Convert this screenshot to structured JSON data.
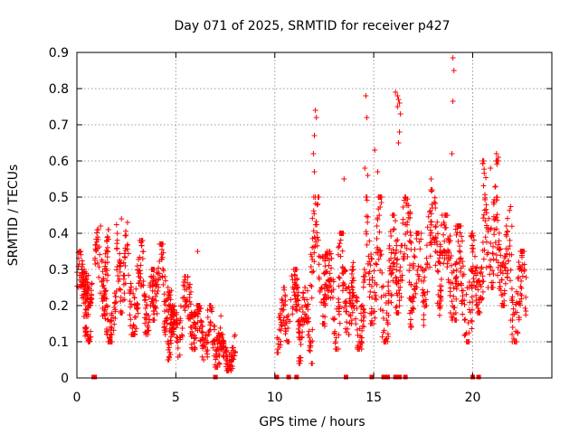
{
  "chart_data": {
    "type": "scatter",
    "title": "Day 071 of 2025, SRMTID for receiver p427",
    "xlabel": "GPS time / hours",
    "ylabel": "SRMTID / TECUs",
    "xlim": [
      0,
      24
    ],
    "ylim": [
      0,
      0.9
    ],
    "xticks": [
      0,
      5,
      10,
      15,
      20
    ],
    "yticks": [
      0,
      0.1,
      0.2,
      0.3,
      0.4,
      0.5,
      0.6,
      0.7,
      0.8,
      0.9
    ],
    "grid": true,
    "marker": "+",
    "color": "#ff0000",
    "series": [
      {
        "name": "p427",
        "segments": [
          {
            "x0": 0.0,
            "x1": 0.6,
            "lo": 0.17,
            "hi": 0.35
          },
          {
            "x0": 0.2,
            "x1": 0.8,
            "lo": 0.2,
            "hi": 0.3
          },
          {
            "x0": 0.4,
            "x1": 0.7,
            "lo": 0.1,
            "hi": 0.14
          },
          {
            "x0": 0.9,
            "x1": 1.6,
            "lo": 0.22,
            "hi": 0.41
          },
          {
            "x0": 1.3,
            "x1": 2.0,
            "lo": 0.1,
            "hi": 0.24
          },
          {
            "x0": 2.0,
            "x1": 2.6,
            "lo": 0.18,
            "hi": 0.43
          },
          {
            "x0": 2.6,
            "x1": 3.4,
            "lo": 0.12,
            "hi": 0.38
          },
          {
            "x0": 3.4,
            "x1": 4.0,
            "lo": 0.12,
            "hi": 0.3
          },
          {
            "x0": 3.8,
            "x1": 4.5,
            "lo": 0.16,
            "hi": 0.37
          },
          {
            "x0": 4.4,
            "x1": 4.9,
            "lo": 0.12,
            "hi": 0.25
          },
          {
            "x0": 4.6,
            "x1": 5.2,
            "lo": 0.05,
            "hi": 0.2
          },
          {
            "x0": 5.2,
            "x1": 6.0,
            "lo": 0.08,
            "hi": 0.28
          },
          {
            "x0": 5.9,
            "x1": 6.6,
            "lo": 0.05,
            "hi": 0.2
          },
          {
            "x0": 6.6,
            "x1": 7.3,
            "lo": 0.03,
            "hi": 0.2
          },
          {
            "x0": 7.2,
            "x1": 8.0,
            "lo": 0.02,
            "hi": 0.12
          },
          {
            "x0": 10.1,
            "x1": 10.6,
            "lo": 0.07,
            "hi": 0.25
          },
          {
            "x0": 10.6,
            "x1": 11.3,
            "lo": 0.1,
            "hi": 0.3
          },
          {
            "x0": 11.2,
            "x1": 11.9,
            "lo": 0.04,
            "hi": 0.25
          },
          {
            "x0": 11.8,
            "x1": 12.6,
            "lo": 0.15,
            "hi": 0.5
          },
          {
            "x0": 12.5,
            "x1": 13.3,
            "lo": 0.08,
            "hi": 0.35
          },
          {
            "x0": 13.2,
            "x1": 14.0,
            "lo": 0.12,
            "hi": 0.4
          },
          {
            "x0": 13.9,
            "x1": 14.6,
            "lo": 0.08,
            "hi": 0.3
          },
          {
            "x0": 14.6,
            "x1": 15.4,
            "lo": 0.15,
            "hi": 0.5
          },
          {
            "x0": 15.3,
            "x1": 16.2,
            "lo": 0.1,
            "hi": 0.45
          },
          {
            "x0": 16.1,
            "x1": 16.9,
            "lo": 0.18,
            "hi": 0.5
          },
          {
            "x0": 16.8,
            "x1": 17.6,
            "lo": 0.14,
            "hi": 0.4
          },
          {
            "x0": 17.6,
            "x1": 18.4,
            "lo": 0.2,
            "hi": 0.52
          },
          {
            "x0": 18.3,
            "x1": 19.2,
            "lo": 0.16,
            "hi": 0.45
          },
          {
            "x0": 19.1,
            "x1": 20.0,
            "lo": 0.1,
            "hi": 0.42
          },
          {
            "x0": 19.9,
            "x1": 20.6,
            "lo": 0.18,
            "hi": 0.4
          },
          {
            "x0": 20.5,
            "x1": 21.3,
            "lo": 0.25,
            "hi": 0.6
          },
          {
            "x0": 21.2,
            "x1": 22.0,
            "lo": 0.2,
            "hi": 0.48
          },
          {
            "x0": 21.9,
            "x1": 22.7,
            "lo": 0.1,
            "hi": 0.35
          }
        ],
        "outliers": [
          [
            12.05,
            0.74
          ],
          [
            12.1,
            0.72
          ],
          [
            12.0,
            0.67
          ],
          [
            11.95,
            0.62
          ],
          [
            12.0,
            0.57
          ],
          [
            14.6,
            0.78
          ],
          [
            14.65,
            0.72
          ],
          [
            14.7,
            0.56
          ],
          [
            14.55,
            0.58
          ],
          [
            16.1,
            0.79
          ],
          [
            16.2,
            0.78
          ],
          [
            16.25,
            0.77
          ],
          [
            16.3,
            0.76
          ],
          [
            16.35,
            0.73
          ],
          [
            16.2,
            0.75
          ],
          [
            16.3,
            0.68
          ],
          [
            16.25,
            0.65
          ],
          [
            19.0,
            0.885
          ],
          [
            19.05,
            0.85
          ],
          [
            19.0,
            0.765
          ],
          [
            18.95,
            0.62
          ],
          [
            15.05,
            0.63
          ],
          [
            15.2,
            0.57
          ],
          [
            13.5,
            0.55
          ],
          [
            21.2,
            0.62
          ],
          [
            21.3,
            0.61
          ],
          [
            6.1,
            0.35
          ],
          [
            2.25,
            0.44
          ],
          [
            1.2,
            0.42
          ],
          [
            17.9,
            0.55
          ],
          [
            20.9,
            0.58
          ]
        ],
        "zero_points": [
          0.85,
          0.9,
          7.0,
          10.1,
          10.7,
          11.1,
          13.6,
          14.9,
          15.5,
          15.7,
          16.1,
          16.3,
          16.6,
          20.0,
          20.3
        ]
      }
    ]
  }
}
